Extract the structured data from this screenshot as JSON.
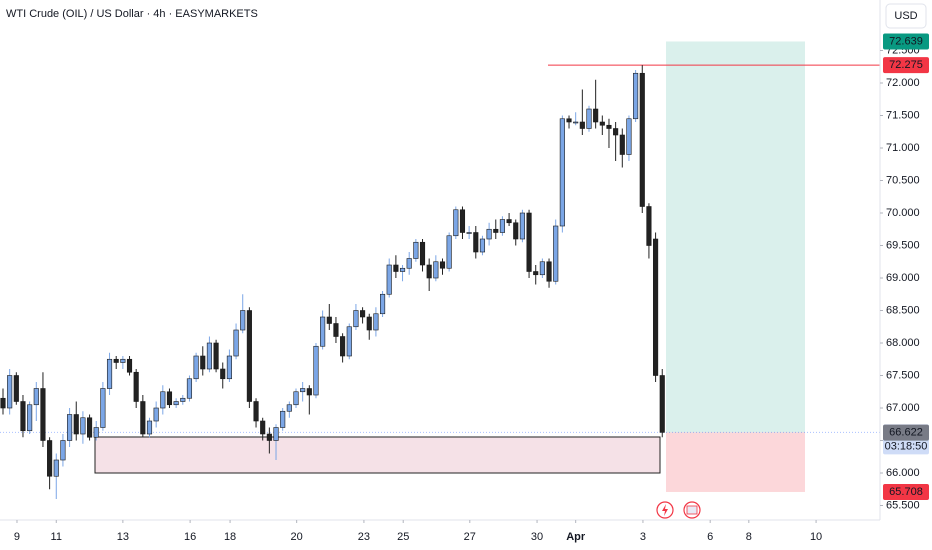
{
  "chart_data": {
    "type": "candlestick",
    "title": "WTI Crude (OIL) / US Dollar · 4h · EASYMARKETS",
    "currency": "USD",
    "up_color": "#7ba6e6",
    "down_color": "#222222",
    "candles": [
      [
        67.15,
        67.3,
        66.9,
        67.0
      ],
      [
        67.0,
        67.6,
        66.9,
        67.5
      ],
      [
        67.5,
        67.55,
        67.05,
        67.1
      ],
      [
        67.1,
        67.2,
        66.55,
        66.65
      ],
      [
        66.65,
        67.1,
        66.6,
        67.05
      ],
      [
        67.05,
        67.4,
        66.8,
        67.3
      ],
      [
        67.3,
        67.55,
        66.4,
        66.5
      ],
      [
        66.5,
        66.55,
        65.75,
        65.95
      ],
      [
        65.95,
        66.3,
        65.6,
        66.2
      ],
      [
        66.2,
        66.6,
        66.1,
        66.5
      ],
      [
        66.5,
        67.0,
        66.4,
        66.9
      ],
      [
        66.9,
        67.1,
        66.5,
        66.6
      ],
      [
        66.6,
        66.95,
        66.45,
        66.85
      ],
      [
        66.85,
        66.9,
        66.5,
        66.55
      ],
      [
        66.55,
        66.8,
        66.5,
        66.7
      ],
      [
        66.7,
        67.4,
        66.65,
        67.3
      ],
      [
        67.3,
        67.85,
        67.2,
        67.75
      ],
      [
        67.75,
        67.8,
        67.6,
        67.7
      ],
      [
        67.7,
        67.8,
        67.6,
        67.75
      ],
      [
        67.75,
        67.8,
        67.5,
        67.55
      ],
      [
        67.55,
        67.6,
        67.0,
        67.1
      ],
      [
        67.1,
        67.2,
        66.55,
        66.6
      ],
      [
        66.6,
        66.85,
        66.55,
        66.8
      ],
      [
        66.8,
        67.1,
        66.7,
        67.0
      ],
      [
        67.0,
        67.35,
        66.9,
        67.25
      ],
      [
        67.25,
        67.3,
        67.0,
        67.05
      ],
      [
        67.05,
        67.15,
        67.0,
        67.1
      ],
      [
        67.1,
        67.2,
        67.05,
        67.15
      ],
      [
        67.15,
        67.5,
        67.1,
        67.45
      ],
      [
        67.45,
        67.85,
        67.4,
        67.8
      ],
      [
        67.8,
        67.95,
        67.5,
        67.6
      ],
      [
        67.6,
        68.1,
        67.55,
        68.0
      ],
      [
        68.0,
        68.05,
        67.55,
        67.6
      ],
      [
        67.6,
        67.7,
        67.3,
        67.45
      ],
      [
        67.45,
        67.9,
        67.4,
        67.8
      ],
      [
        67.8,
        68.3,
        67.75,
        68.2
      ],
      [
        68.2,
        68.75,
        68.15,
        68.5
      ],
      [
        68.5,
        68.55,
        67.0,
        67.1
      ],
      [
        67.1,
        67.15,
        66.7,
        66.8
      ],
      [
        66.8,
        66.85,
        66.5,
        66.6
      ],
      [
        66.6,
        66.7,
        66.3,
        66.5
      ],
      [
        66.5,
        66.75,
        66.2,
        66.7
      ],
      [
        66.7,
        67.0,
        66.65,
        66.95
      ],
      [
        66.95,
        67.1,
        66.85,
        67.05
      ],
      [
        67.05,
        67.3,
        67.0,
        67.25
      ],
      [
        67.25,
        67.4,
        67.1,
        67.3
      ],
      [
        67.3,
        67.35,
        66.9,
        67.2
      ],
      [
        67.2,
        68.0,
        67.15,
        67.95
      ],
      [
        67.95,
        68.5,
        67.9,
        68.4
      ],
      [
        68.4,
        68.6,
        68.2,
        68.3
      ],
      [
        68.3,
        68.4,
        68.0,
        68.1
      ],
      [
        68.1,
        68.15,
        67.7,
        67.8
      ],
      [
        67.8,
        68.3,
        67.75,
        68.25
      ],
      [
        68.25,
        68.6,
        68.2,
        68.5
      ],
      [
        68.5,
        68.55,
        68.3,
        68.4
      ],
      [
        68.4,
        68.45,
        68.05,
        68.2
      ],
      [
        68.2,
        68.55,
        68.1,
        68.45
      ],
      [
        68.45,
        68.8,
        68.4,
        68.75
      ],
      [
        68.75,
        69.3,
        68.7,
        69.2
      ],
      [
        69.2,
        69.35,
        69.0,
        69.1
      ],
      [
        69.1,
        69.2,
        68.95,
        69.15
      ],
      [
        69.15,
        69.4,
        69.05,
        69.3
      ],
      [
        69.3,
        69.6,
        69.25,
        69.55
      ],
      [
        69.55,
        69.6,
        69.1,
        69.2
      ],
      [
        69.2,
        69.3,
        68.8,
        69.0
      ],
      [
        69.0,
        69.35,
        68.95,
        69.25
      ],
      [
        69.25,
        69.3,
        69.05,
        69.15
      ],
      [
        69.15,
        69.7,
        69.1,
        69.65
      ],
      [
        69.65,
        70.1,
        69.6,
        70.05
      ],
      [
        70.05,
        70.1,
        69.6,
        69.7
      ],
      [
        69.7,
        69.8,
        69.6,
        69.7
      ],
      [
        69.7,
        69.8,
        69.3,
        69.4
      ],
      [
        69.4,
        69.65,
        69.35,
        69.6
      ],
      [
        69.6,
        69.85,
        69.5,
        69.75
      ],
      [
        69.75,
        69.9,
        69.6,
        69.7
      ],
      [
        69.7,
        69.95,
        69.65,
        69.9
      ],
      [
        69.9,
        70.0,
        69.8,
        69.85
      ],
      [
        69.85,
        69.9,
        69.5,
        69.6
      ],
      [
        69.6,
        70.05,
        69.55,
        70.0
      ],
      [
        70.0,
        70.05,
        69.0,
        69.1
      ],
      [
        69.1,
        69.2,
        68.9,
        69.05
      ],
      [
        69.05,
        69.3,
        69.0,
        69.25
      ],
      [
        69.25,
        69.3,
        68.85,
        68.95
      ],
      [
        68.95,
        69.9,
        68.9,
        69.8
      ],
      [
        69.8,
        71.5,
        69.7,
        71.45
      ],
      [
        71.45,
        71.5,
        71.3,
        71.4
      ],
      [
        71.4,
        71.55,
        71.35,
        71.4
      ],
      [
        71.4,
        71.9,
        71.2,
        71.3
      ],
      [
        71.3,
        71.65,
        71.25,
        71.6
      ],
      [
        71.6,
        72.05,
        71.3,
        71.4
      ],
      [
        71.4,
        71.5,
        71.2,
        71.35
      ],
      [
        71.35,
        71.45,
        71.0,
        71.3
      ],
      [
        71.3,
        71.4,
        70.8,
        71.2
      ],
      [
        71.2,
        71.3,
        70.7,
        70.9
      ],
      [
        70.9,
        71.5,
        70.8,
        71.45
      ],
      [
        71.45,
        72.2,
        71.4,
        72.15
      ],
      [
        72.15,
        72.275,
        70.0,
        70.1
      ],
      [
        70.1,
        70.15,
        69.3,
        69.5
      ],
      [
        69.6,
        69.7,
        67.4,
        67.5
      ],
      [
        67.5,
        67.6,
        66.55,
        66.625
      ]
    ],
    "xlim": [
      -0.45,
      131.7
    ],
    "xticks": [
      {
        "value": 2.1,
        "label": "9"
      },
      {
        "value": 8.0,
        "label": "11"
      },
      {
        "value": 18.0,
        "label": "13"
      },
      {
        "value": 28.1,
        "label": "16"
      },
      {
        "value": 34.1,
        "label": "18"
      },
      {
        "value": 44.1,
        "label": "20"
      },
      {
        "value": 54.2,
        "label": "23"
      },
      {
        "value": 60.1,
        "label": "25"
      },
      {
        "value": 70.1,
        "label": "27"
      },
      {
        "value": 80.2,
        "label": "30"
      },
      {
        "value": 86.0,
        "label": "Apr"
      },
      {
        "value": 96.1,
        "label": "3"
      },
      {
        "value": 106.2,
        "label": "6"
      },
      {
        "value": 112.0,
        "label": "8"
      },
      {
        "value": 122.1,
        "label": "10"
      }
    ],
    "ylim": [
      65.277,
      73.277
    ],
    "yticks": [
      {
        "value": 72.5,
        "label": "72.500"
      },
      {
        "value": 72,
        "label": "72.000"
      },
      {
        "value": 71.5,
        "label": "71.500"
      },
      {
        "value": 71,
        "label": "71.000"
      },
      {
        "value": 70.5,
        "label": "70.500"
      },
      {
        "value": 70,
        "label": "70.000"
      },
      {
        "value": 69.5,
        "label": "69.500"
      },
      {
        "value": 69,
        "label": "69.000"
      },
      {
        "value": 68.5,
        "label": "68.500"
      },
      {
        "value": 68,
        "label": "68.000"
      },
      {
        "value": 67.5,
        "label": "67.500"
      },
      {
        "value": 67,
        "label": "67.000"
      },
      {
        "value": 66.5,
        "label": "66.500"
      },
      {
        "value": 66,
        "label": "66.000"
      },
      {
        "value": 65.5,
        "label": "65.500"
      }
    ],
    "resistance": {
      "value": 72.275,
      "color": "#f23645"
    },
    "support_zone": [
      66.0,
      66.554
    ],
    "position": {
      "target": 72.639,
      "entry": 66.625,
      "stop": 65.708,
      "target_color": "#089981",
      "stop_color": "#f23645"
    },
    "last_price": {
      "value": 66.625,
      "countdown": "03:18:50",
      "color": "#2962ff"
    },
    "marker_price": {
      "value": 66.622,
      "color": "#787b86"
    }
  }
}
